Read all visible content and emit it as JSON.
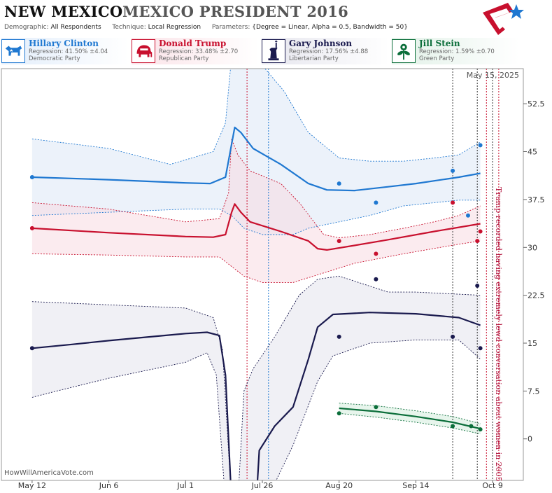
{
  "header": {
    "state": "NEW MEXICO",
    "race": "MEXICO PRESIDENT 2016",
    "demographic_label": "Demographic:",
    "demographic": "All Respondents",
    "technique_label": "Technique:",
    "technique": "Local Regression",
    "parameters_label": "Parameters:",
    "parameters": "{Degree = Linear, Alpha = 0.5, Bandwidth = 50}"
  },
  "candidates": [
    {
      "name": "Hillary Clinton",
      "regression": "Regression: 41.50% ±4.04",
      "party": "Democratic Party",
      "color": "#1f78d1",
      "icon": "donkey-icon"
    },
    {
      "name": "Donald Trump",
      "regression": "Regression: 33.48% ±2.70",
      "party": "Republican Party",
      "color": "#c8102e",
      "icon": "elephant-icon"
    },
    {
      "name": "Gary Johnson",
      "regression": "Regression: 17.56% ±4.88",
      "party": "Libertarian Party",
      "color": "#1a1a4e",
      "icon": "liberty-torch-icon"
    },
    {
      "name": "Jill Stein",
      "regression": "Regression: 1.59% ±0.70",
      "party": "Green Party",
      "color": "#0b6e3a",
      "icon": "leaf-flower-icon"
    }
  ],
  "chart_data": {
    "type": "line",
    "date_label": "May 15, 2025",
    "watermark": "HowWillAmericaVote.com",
    "annotation": "Trump recorded having extremely lewd conversation about women in 2005",
    "x_axis": {
      "range": [
        "2016-05-02",
        "2016-10-19"
      ],
      "ticks": [
        {
          "date": "2016-05-12",
          "label": "May 12"
        },
        {
          "date": "2016-06-06",
          "label": "Jun 6"
        },
        {
          "date": "2016-07-01",
          "label": "Jul 1"
        },
        {
          "date": "2016-07-26",
          "label": "Jul 26"
        },
        {
          "date": "2016-08-20",
          "label": "Aug 20"
        },
        {
          "date": "2016-09-14",
          "label": "Sep 14"
        },
        {
          "date": "2016-10-09",
          "label": "Oct 9"
        }
      ]
    },
    "y_axis": {
      "ylim": [
        -6.5,
        58
      ],
      "ticks": [
        0,
        7.5,
        15,
        22.5,
        30,
        37.5,
        45,
        52.5
      ]
    },
    "events": [
      {
        "date": "2016-07-21",
        "color": "#c8102e"
      },
      {
        "date": "2016-07-28",
        "color": "#1f78d1"
      },
      {
        "date": "2016-09-26",
        "color": "#333333"
      },
      {
        "date": "2016-10-04",
        "color": "#333333"
      },
      {
        "date": "2016-10-07",
        "color": "#c8102e"
      },
      {
        "date": "2016-10-09",
        "color": "#333333"
      },
      {
        "date": "2016-10-11",
        "color": "#c8102e"
      }
    ],
    "series": [
      {
        "name": "Hillary Clinton",
        "color": "#1f78d1",
        "line": [
          [
            "2016-05-12",
            41.0
          ],
          [
            "2016-06-06",
            40.6
          ],
          [
            "2016-07-01",
            40.1
          ],
          [
            "2016-07-09",
            40.0
          ],
          [
            "2016-07-14",
            41.0
          ],
          [
            "2016-07-17",
            48.8
          ],
          [
            "2016-07-19",
            48.0
          ],
          [
            "2016-07-23",
            45.5
          ],
          [
            "2016-08-01",
            43.0
          ],
          [
            "2016-08-10",
            40.0
          ],
          [
            "2016-08-16",
            39.0
          ],
          [
            "2016-08-25",
            38.9
          ],
          [
            "2016-09-05",
            39.5
          ],
          [
            "2016-09-14",
            40.0
          ],
          [
            "2016-09-28",
            41.0
          ],
          [
            "2016-10-05",
            41.6
          ]
        ],
        "upper": [
          [
            "2016-05-12",
            47.0
          ],
          [
            "2016-06-06",
            45.5
          ],
          [
            "2016-06-26",
            43.0
          ],
          [
            "2016-07-10",
            45.0
          ],
          [
            "2016-07-14",
            49.5
          ],
          [
            "2016-07-16",
            60.0
          ],
          [
            "2016-07-21",
            60.0
          ],
          [
            "2016-07-26",
            58.5
          ],
          [
            "2016-08-02",
            54.5
          ],
          [
            "2016-08-10",
            48.0
          ],
          [
            "2016-08-20",
            44.0
          ],
          [
            "2016-08-30",
            43.5
          ],
          [
            "2016-09-10",
            43.5
          ],
          [
            "2016-09-20",
            44.0
          ],
          [
            "2016-09-28",
            44.5
          ],
          [
            "2016-10-05",
            46.5
          ]
        ],
        "lower": [
          [
            "2016-05-12",
            35.0
          ],
          [
            "2016-06-06",
            35.5
          ],
          [
            "2016-07-01",
            36.0
          ],
          [
            "2016-07-12",
            36.0
          ],
          [
            "2016-07-16",
            35.0
          ],
          [
            "2016-07-20",
            33.0
          ],
          [
            "2016-07-26",
            32.0
          ],
          [
            "2016-08-05",
            32.0
          ],
          [
            "2016-08-10",
            33.0
          ],
          [
            "2016-08-20",
            34.0
          ],
          [
            "2016-08-30",
            35.0
          ],
          [
            "2016-09-10",
            36.5
          ],
          [
            "2016-09-28",
            37.4
          ],
          [
            "2016-10-05",
            37.4
          ]
        ],
        "points": [
          [
            "2016-05-12",
            41.0
          ],
          [
            "2016-08-20",
            40.0
          ],
          [
            "2016-09-01",
            37.0
          ],
          [
            "2016-09-26",
            42.0
          ],
          [
            "2016-10-01",
            35.0
          ],
          [
            "2016-10-05",
            46.0
          ]
        ]
      },
      {
        "name": "Donald Trump",
        "color": "#c8102e",
        "line": [
          [
            "2016-05-12",
            33.0
          ],
          [
            "2016-06-06",
            32.3
          ],
          [
            "2016-07-01",
            31.7
          ],
          [
            "2016-07-10",
            31.6
          ],
          [
            "2016-07-14",
            32.0
          ],
          [
            "2016-07-16",
            35.5
          ],
          [
            "2016-07-17",
            36.8
          ],
          [
            "2016-07-19",
            35.5
          ],
          [
            "2016-07-22",
            34.0
          ],
          [
            "2016-08-01",
            32.5
          ],
          [
            "2016-08-10",
            31.0
          ],
          [
            "2016-08-13",
            29.8
          ],
          [
            "2016-08-16",
            29.6
          ],
          [
            "2016-08-25",
            30.3
          ],
          [
            "2016-09-05",
            31.2
          ],
          [
            "2016-09-20",
            32.5
          ],
          [
            "2016-10-05",
            33.7
          ]
        ],
        "upper": [
          [
            "2016-05-12",
            37.0
          ],
          [
            "2016-06-06",
            36.0
          ],
          [
            "2016-07-01",
            34.0
          ],
          [
            "2016-07-12",
            34.5
          ],
          [
            "2016-07-15",
            38.5
          ],
          [
            "2016-07-16",
            47.0
          ],
          [
            "2016-07-18",
            44.5
          ],
          [
            "2016-07-22",
            42.0
          ],
          [
            "2016-08-01",
            40.0
          ],
          [
            "2016-08-07",
            37.0
          ],
          [
            "2016-08-15",
            32.0
          ],
          [
            "2016-08-20",
            31.5
          ],
          [
            "2016-08-30",
            32.0
          ],
          [
            "2016-09-10",
            33.0
          ],
          [
            "2016-09-20",
            34.0
          ],
          [
            "2016-09-28",
            35.0
          ],
          [
            "2016-10-05",
            36.5
          ]
        ],
        "lower": [
          [
            "2016-05-12",
            29.0
          ],
          [
            "2016-06-06",
            28.8
          ],
          [
            "2016-07-01",
            28.5
          ],
          [
            "2016-07-12",
            28.5
          ],
          [
            "2016-07-16",
            27.0
          ],
          [
            "2016-07-20",
            25.5
          ],
          [
            "2016-07-26",
            24.5
          ],
          [
            "2016-08-05",
            24.5
          ],
          [
            "2016-08-15",
            26.0
          ],
          [
            "2016-08-25",
            27.5
          ],
          [
            "2016-09-10",
            29.0
          ],
          [
            "2016-09-28",
            30.5
          ],
          [
            "2016-10-05",
            31.0
          ]
        ],
        "points": [
          [
            "2016-05-12",
            33.0
          ],
          [
            "2016-08-20",
            31.0
          ],
          [
            "2016-09-01",
            29.0
          ],
          [
            "2016-09-26",
            37.0
          ],
          [
            "2016-10-04",
            31.0
          ],
          [
            "2016-10-05",
            32.5
          ]
        ]
      },
      {
        "name": "Gary Johnson",
        "color": "#1a1a4e",
        "line": [
          [
            "2016-05-12",
            14.2
          ],
          [
            "2016-05-25",
            14.8
          ],
          [
            "2016-06-06",
            15.4
          ],
          [
            "2016-07-01",
            16.5
          ],
          [
            "2016-07-08",
            16.7
          ],
          [
            "2016-07-12",
            16.2
          ],
          [
            "2016-07-14",
            10.0
          ],
          [
            "2016-07-16",
            -10.0
          ],
          [
            "2016-07-24",
            -10.0
          ],
          [
            "2016-07-25",
            -1.8
          ],
          [
            "2016-07-30",
            2.0
          ],
          [
            "2016-08-05",
            5.0
          ],
          [
            "2016-08-10",
            12.5
          ],
          [
            "2016-08-13",
            17.5
          ],
          [
            "2016-08-18",
            19.5
          ],
          [
            "2016-08-30",
            19.8
          ],
          [
            "2016-09-14",
            19.6
          ],
          [
            "2016-09-28",
            19.0
          ],
          [
            "2016-10-05",
            17.8
          ]
        ],
        "upper": [
          [
            "2016-05-12",
            21.5
          ],
          [
            "2016-06-06",
            21.0
          ],
          [
            "2016-07-01",
            20.5
          ],
          [
            "2016-07-10",
            19.0
          ],
          [
            "2016-07-13",
            14.0
          ],
          [
            "2016-07-16",
            -10.0
          ],
          [
            "2016-07-18",
            -10.0
          ],
          [
            "2016-07-20",
            7.5
          ],
          [
            "2016-07-23",
            11.0
          ],
          [
            "2016-07-30",
            16.0
          ],
          [
            "2016-08-07",
            22.5
          ],
          [
            "2016-08-13",
            25.0
          ],
          [
            "2016-08-20",
            25.5
          ],
          [
            "2016-09-05",
            23.0
          ],
          [
            "2016-09-14",
            23.0
          ],
          [
            "2016-10-05",
            22.5
          ]
        ],
        "lower": [
          [
            "2016-05-12",
            6.5
          ],
          [
            "2016-05-20",
            7.5
          ],
          [
            "2016-06-06",
            9.5
          ],
          [
            "2016-07-01",
            12.0
          ],
          [
            "2016-07-08",
            13.5
          ],
          [
            "2016-07-11",
            10.0
          ],
          [
            "2016-07-14",
            -10.0
          ],
          [
            "2016-07-26",
            -10.0
          ],
          [
            "2016-07-29",
            -8.0
          ],
          [
            "2016-08-05",
            -1.0
          ],
          [
            "2016-08-13",
            9.0
          ],
          [
            "2016-08-18",
            13.0
          ],
          [
            "2016-08-30",
            15.0
          ],
          [
            "2016-09-14",
            15.5
          ],
          [
            "2016-09-28",
            15.5
          ],
          [
            "2016-10-05",
            12.5
          ]
        ],
        "points": [
          [
            "2016-05-12",
            14.2
          ],
          [
            "2016-08-20",
            16.0
          ],
          [
            "2016-09-01",
            25.0
          ],
          [
            "2016-09-26",
            16.0
          ],
          [
            "2016-10-04",
            24.0
          ],
          [
            "2016-10-05",
            14.2
          ]
        ]
      },
      {
        "name": "Jill Stein",
        "color": "#0b6e3a",
        "line": [
          [
            "2016-08-20",
            4.8
          ],
          [
            "2016-09-01",
            4.3
          ],
          [
            "2016-09-14",
            3.5
          ],
          [
            "2016-09-26",
            2.6
          ],
          [
            "2016-10-05",
            1.6
          ]
        ],
        "upper": [
          [
            "2016-08-20",
            5.6
          ],
          [
            "2016-09-01",
            5.2
          ],
          [
            "2016-09-14",
            4.4
          ],
          [
            "2016-09-26",
            3.5
          ],
          [
            "2016-10-05",
            2.4
          ]
        ],
        "lower": [
          [
            "2016-08-20",
            4.0
          ],
          [
            "2016-09-01",
            3.4
          ],
          [
            "2016-09-14",
            2.6
          ],
          [
            "2016-09-26",
            1.7
          ],
          [
            "2016-10-05",
            0.8
          ]
        ],
        "points": [
          [
            "2016-08-20",
            4.0
          ],
          [
            "2016-09-01",
            5.0
          ],
          [
            "2016-09-26",
            2.0
          ],
          [
            "2016-10-02",
            2.0
          ],
          [
            "2016-10-05",
            1.5
          ]
        ]
      }
    ]
  }
}
